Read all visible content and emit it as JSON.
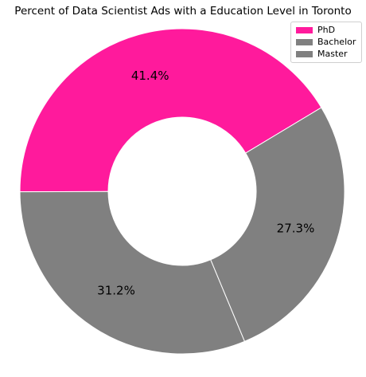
{
  "chart_data": {
    "type": "pie",
    "title": "Percent of Data Scientist Ads with a Education Level in Toronto",
    "categories": [
      "PhD",
      "Bachelor",
      "Master"
    ],
    "values": [
      41.4,
      31.2,
      27.3
    ],
    "value_labels": [
      "41.4%",
      "31.2%",
      "27.3%"
    ],
    "colors": [
      "#ff1a9c",
      "#808080",
      "#808080"
    ],
    "donut": true,
    "legend_position": "top-right",
    "start_angle_deg": 31
  }
}
